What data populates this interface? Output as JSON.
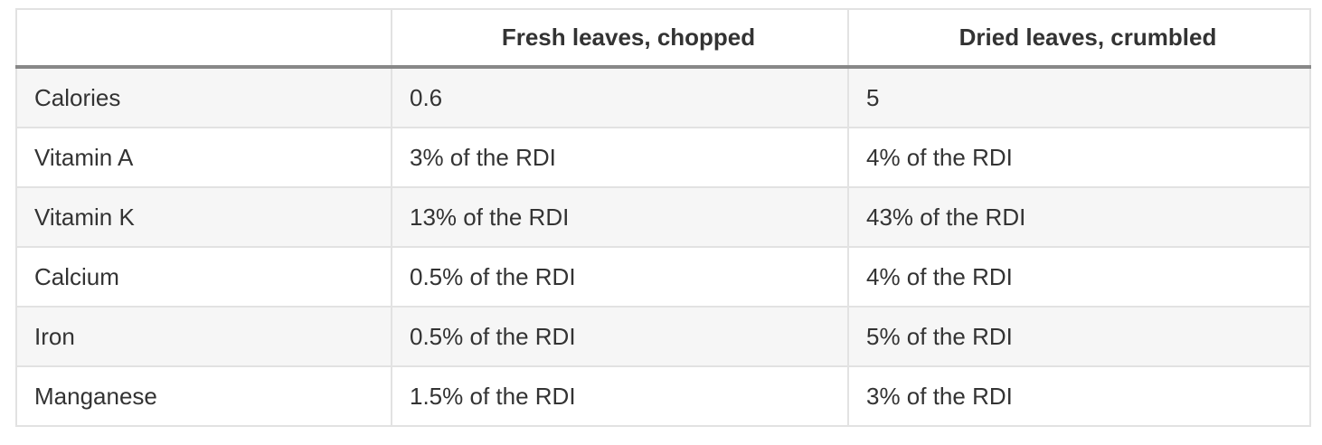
{
  "table": {
    "header": [
      "Fresh leaves, chopped",
      "Dried leaves, crumbled"
    ],
    "rows": [
      [
        "Calories",
        "0.6",
        "5"
      ],
      [
        "Vitamin A",
        "3% of the RDI",
        "4% of the RDI"
      ],
      [
        "Vitamin K",
        "13% of the RDI",
        "43% of the RDI"
      ],
      [
        "Calcium",
        "0.5% of the RDI",
        "4% of the RDI"
      ],
      [
        "Iron",
        "0.5% of the RDI",
        "5% of the RDI"
      ],
      [
        "Manganese",
        "1.5% of the RDI",
        "3% of the RDI"
      ]
    ]
  }
}
